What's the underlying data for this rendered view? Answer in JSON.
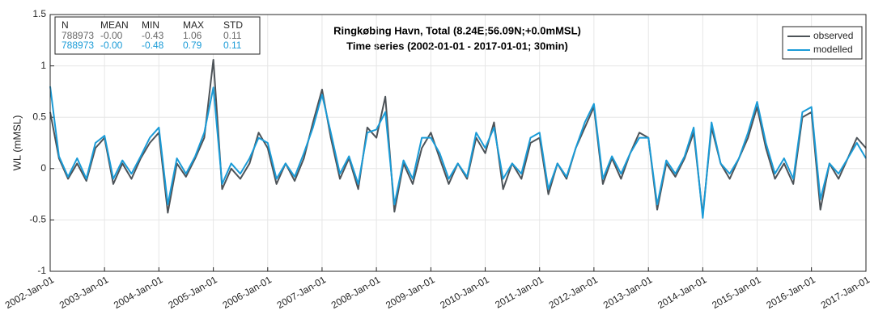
{
  "chart_data": {
    "type": "line",
    "title": "Ringkøbing Havn, Total (8.24E;56.09N;+0.0mMSL)",
    "subtitle": "Time series  (2002-01-01 - 2017-01-01; 30min)",
    "y_label": "WL (mMSL)",
    "ylim": [
      -1,
      1.5
    ],
    "yticks": [
      -1,
      -0.5,
      0,
      0.5,
      1,
      1.5
    ],
    "xlim": [
      "2002-Jan-01",
      "2017-Jan-01"
    ],
    "xticks": [
      "2002-Jan-01",
      "2003-Jan-01",
      "2004-Jan-01",
      "2005-Jan-01",
      "2006-Jan-01",
      "2007-Jan-01",
      "2008-Jan-01",
      "2009-Jan-01",
      "2010-Jan-01",
      "2011-Jan-01",
      "2012-Jan-01",
      "2013-Jan-01",
      "2014-Jan-01",
      "2015-Jan-01",
      "2016-Jan-01",
      "2017-Jan-01"
    ],
    "grid": true,
    "legend": "upper right",
    "stats_table": {
      "columns": [
        "N",
        "MEAN",
        "MIN",
        "MAX",
        "STD"
      ],
      "rows": [
        [
          "788973",
          "-0.00",
          "-0.43",
          "1.06",
          "0.11"
        ],
        [
          "788973",
          "-0.00",
          "-0.48",
          "0.79",
          "0.11"
        ]
      ],
      "row_colors": [
        "#666666",
        "#1a9bd7"
      ]
    },
    "x": [
      "2002-Jan-01",
      "2002-Mar-01",
      "2002-May-01",
      "2002-Jul-01",
      "2002-Sep-01",
      "2002-Nov-01",
      "2003-Jan-01",
      "2003-Mar-01",
      "2003-May-01",
      "2003-Jul-01",
      "2003-Sep-01",
      "2003-Nov-01",
      "2004-Jan-01",
      "2004-Mar-01",
      "2004-May-01",
      "2004-Jul-01",
      "2004-Sep-01",
      "2004-Nov-01",
      "2005-Jan-01",
      "2005-Mar-01",
      "2005-May-01",
      "2005-Jul-01",
      "2005-Sep-01",
      "2005-Nov-01",
      "2006-Jan-01",
      "2006-Mar-01",
      "2006-May-01",
      "2006-Jul-01",
      "2006-Sep-01",
      "2006-Nov-01",
      "2007-Jan-01",
      "2007-Mar-01",
      "2007-May-01",
      "2007-Jul-01",
      "2007-Sep-01",
      "2007-Nov-01",
      "2008-Jan-01",
      "2008-Mar-01",
      "2008-May-01",
      "2008-Jul-01",
      "2008-Sep-01",
      "2008-Nov-01",
      "2009-Jan-01",
      "2009-Mar-01",
      "2009-May-01",
      "2009-Jul-01",
      "2009-Sep-01",
      "2009-Nov-01",
      "2010-Jan-01",
      "2010-Mar-01",
      "2010-May-01",
      "2010-Jul-01",
      "2010-Sep-01",
      "2010-Nov-01",
      "2011-Jan-01",
      "2011-Mar-01",
      "2011-May-01",
      "2011-Jul-01",
      "2011-Sep-01",
      "2011-Nov-01",
      "2012-Jan-01",
      "2012-Mar-01",
      "2012-May-01",
      "2012-Jul-01",
      "2012-Sep-01",
      "2012-Nov-01",
      "2013-Jan-01",
      "2013-Mar-01",
      "2013-May-01",
      "2013-Jul-01",
      "2013-Sep-01",
      "2013-Nov-01",
      "2014-Jan-01",
      "2014-Mar-01",
      "2014-May-01",
      "2014-Jul-01",
      "2014-Sep-01",
      "2014-Nov-01",
      "2015-Jan-01",
      "2015-Mar-01",
      "2015-May-01",
      "2015-Jul-01",
      "2015-Sep-01",
      "2015-Nov-01",
      "2016-Jan-01",
      "2016-Mar-01",
      "2016-May-01",
      "2016-Jul-01",
      "2016-Sep-01",
      "2016-Nov-01",
      "2017-Jan-01"
    ],
    "series": [
      {
        "name": "observed",
        "color": "#4d5358",
        "values": [
          0.55,
          0.1,
          -0.1,
          0.05,
          -0.12,
          0.2,
          0.3,
          -0.15,
          0.05,
          -0.1,
          0.1,
          0.25,
          0.35,
          -0.43,
          0.05,
          -0.08,
          0.1,
          0.3,
          1.06,
          -0.2,
          0.0,
          -0.1,
          0.05,
          0.35,
          0.2,
          -0.15,
          0.05,
          -0.12,
          0.1,
          0.45,
          0.77,
          0.3,
          -0.1,
          0.1,
          -0.2,
          0.4,
          0.3,
          0.7,
          -0.42,
          0.05,
          -0.15,
          0.2,
          0.35,
          0.1,
          -0.15,
          0.05,
          -0.1,
          0.3,
          0.15,
          0.45,
          -0.2,
          0.05,
          -0.1,
          0.25,
          0.3,
          -0.25,
          0.05,
          -0.1,
          0.2,
          0.4,
          0.6,
          -0.15,
          0.1,
          -0.1,
          0.15,
          0.35,
          0.3,
          -0.4,
          0.05,
          -0.08,
          0.1,
          0.35,
          -0.45,
          0.4,
          0.05,
          -0.1,
          0.1,
          0.3,
          0.6,
          0.2,
          -0.1,
          0.05,
          -0.15,
          0.5,
          0.55,
          -0.4,
          0.05,
          -0.1,
          0.1,
          0.3,
          0.2
        ]
      },
      {
        "name": "modelled",
        "color": "#1a9bd7",
        "values": [
          0.8,
          0.12,
          -0.08,
          0.1,
          -0.1,
          0.25,
          0.32,
          -0.1,
          0.08,
          -0.05,
          0.12,
          0.3,
          0.4,
          -0.35,
          0.1,
          -0.05,
          0.12,
          0.35,
          0.79,
          -0.15,
          0.05,
          -0.05,
          0.1,
          0.3,
          0.25,
          -0.1,
          0.05,
          -0.08,
          0.15,
          0.4,
          0.72,
          0.35,
          -0.05,
          0.12,
          -0.15,
          0.35,
          0.38,
          0.55,
          -0.35,
          0.08,
          -0.1,
          0.3,
          0.3,
          0.15,
          -0.1,
          0.05,
          -0.08,
          0.35,
          0.2,
          0.4,
          -0.1,
          0.05,
          -0.05,
          0.3,
          0.35,
          -0.2,
          0.05,
          -0.08,
          0.2,
          0.45,
          0.63,
          -0.1,
          0.12,
          -0.05,
          0.15,
          0.3,
          0.3,
          -0.35,
          0.08,
          -0.05,
          0.12,
          0.4,
          -0.48,
          0.45,
          0.05,
          -0.05,
          0.1,
          0.35,
          0.65,
          0.25,
          -0.05,
          0.1,
          -0.1,
          0.55,
          0.6,
          -0.3,
          0.05,
          -0.05,
          0.1,
          0.25,
          0.1
        ]
      }
    ]
  }
}
